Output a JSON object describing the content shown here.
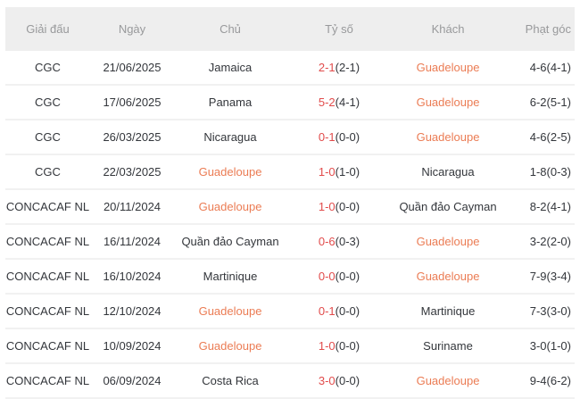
{
  "accent_team": "Guadeloupe",
  "colors": {
    "header_bg": "#eeeeee",
    "header_text": "#98999b",
    "body_text": "#33363b",
    "score_red": "#e14b4b",
    "team_accent_orange": "#eb7c54",
    "row_separator": "#f1f1f1"
  },
  "table": {
    "headers": {
      "league": "Giải đấu",
      "date": "Ngày",
      "home": "Chủ",
      "score": "Tỷ số",
      "away": "Khách",
      "corners": "Phạt góc"
    },
    "rows": [
      {
        "league": "CGC",
        "date": "21/06/2025",
        "home": "Jamaica",
        "home_accent": false,
        "score_ft": "2-1",
        "score_ht": "(2-1)",
        "away": "Guadeloupe",
        "away_accent": true,
        "corners": "4-6(4-1)"
      },
      {
        "league": "CGC",
        "date": "17/06/2025",
        "home": "Panama",
        "home_accent": false,
        "score_ft": "5-2",
        "score_ht": "(4-1)",
        "away": "Guadeloupe",
        "away_accent": true,
        "corners": "6-2(5-1)"
      },
      {
        "league": "CGC",
        "date": "26/03/2025",
        "home": "Nicaragua",
        "home_accent": false,
        "score_ft": "0-1",
        "score_ht": "(0-0)",
        "away": "Guadeloupe",
        "away_accent": true,
        "corners": "4-6(2-5)"
      },
      {
        "league": "CGC",
        "date": "22/03/2025",
        "home": "Guadeloupe",
        "home_accent": true,
        "score_ft": "1-0",
        "score_ht": "(1-0)",
        "away": "Nicaragua",
        "away_accent": false,
        "corners": "1-8(0-3)"
      },
      {
        "league": "CONCACAF NL",
        "date": "20/11/2024",
        "home": "Guadeloupe",
        "home_accent": true,
        "score_ft": "1-0",
        "score_ht": "(0-0)",
        "away": "Quần đảo Cayman",
        "away_accent": false,
        "corners": "8-2(4-1)"
      },
      {
        "league": "CONCACAF NL",
        "date": "16/11/2024",
        "home": "Quần đảo Cayman",
        "home_accent": false,
        "score_ft": "0-6",
        "score_ht": "(0-3)",
        "away": "Guadeloupe",
        "away_accent": true,
        "corners": "3-2(2-0)"
      },
      {
        "league": "CONCACAF NL",
        "date": "16/10/2024",
        "home": "Martinique",
        "home_accent": false,
        "score_ft": "0-0",
        "score_ht": "(0-0)",
        "away": "Guadeloupe",
        "away_accent": true,
        "corners": "7-9(3-4)"
      },
      {
        "league": "CONCACAF NL",
        "date": "12/10/2024",
        "home": "Guadeloupe",
        "home_accent": true,
        "score_ft": "0-1",
        "score_ht": "(0-0)",
        "away": "Martinique",
        "away_accent": false,
        "corners": "7-3(3-0)"
      },
      {
        "league": "CONCACAF NL",
        "date": "10/09/2024",
        "home": "Guadeloupe",
        "home_accent": true,
        "score_ft": "1-0",
        "score_ht": "(0-0)",
        "away": "Suriname",
        "away_accent": false,
        "corners": "3-0(1-0)"
      },
      {
        "league": "CONCACAF NL",
        "date": "06/09/2024",
        "home": "Costa Rica",
        "home_accent": false,
        "score_ft": "3-0",
        "score_ht": "(0-0)",
        "away": "Guadeloupe",
        "away_accent": true,
        "corners": "9-4(6-2)"
      }
    ]
  }
}
